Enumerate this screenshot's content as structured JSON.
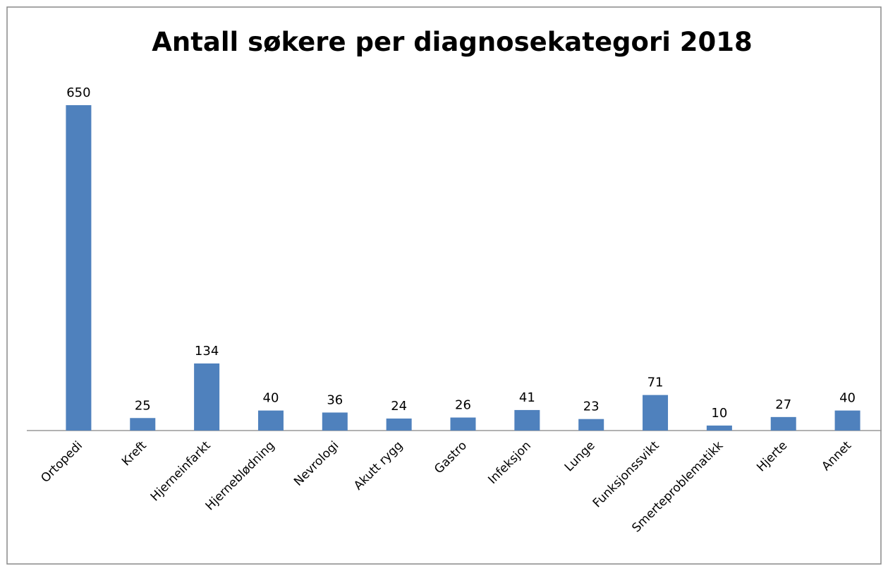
{
  "chart_data": {
    "type": "bar",
    "title": "Antall søkere per diagnosekategori 2018",
    "categories": [
      "Ortopedi",
      "Kreft",
      "Hjerneinfarkt",
      "Hjerneblødning",
      "Nevrologi",
      "Akutt rygg",
      "Gastro",
      "Infeksjon",
      "Lunge",
      "Funksjonssvikt",
      "Smerteproblematikk",
      "Hjerte",
      "Annet"
    ],
    "values": [
      650,
      25,
      134,
      40,
      36,
      24,
      26,
      41,
      23,
      71,
      10,
      27,
      40
    ],
    "color": "#4f81bd"
  }
}
